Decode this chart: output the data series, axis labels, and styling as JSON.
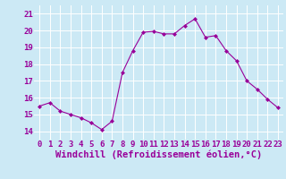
{
  "x": [
    0,
    1,
    2,
    3,
    4,
    5,
    6,
    7,
    8,
    9,
    10,
    11,
    12,
    13,
    14,
    15,
    16,
    17,
    18,
    19,
    20,
    21,
    22,
    23
  ],
  "y": [
    15.5,
    15.7,
    15.2,
    15.0,
    14.8,
    14.5,
    14.1,
    14.6,
    17.5,
    18.8,
    19.9,
    19.95,
    19.8,
    19.8,
    20.3,
    20.7,
    19.6,
    19.7,
    18.8,
    18.2,
    17.0,
    16.5,
    15.9,
    15.4
  ],
  "line_color": "#990099",
  "marker": "D",
  "marker_size": 2.0,
  "bg_color": "#cce9f5",
  "grid_color": "#ffffff",
  "xlabel": "Windchill (Refroidissement éolien,°C)",
  "xlabel_color": "#990099",
  "xlabel_fontsize": 7.5,
  "tick_color": "#990099",
  "tick_fontsize": 6.5,
  "ylim": [
    13.5,
    21.5
  ],
  "yticks": [
    14,
    15,
    16,
    17,
    18,
    19,
    20,
    21
  ],
  "xlim": [
    -0.5,
    23.5
  ],
  "xticks": [
    0,
    1,
    2,
    3,
    4,
    5,
    6,
    7,
    8,
    9,
    10,
    11,
    12,
    13,
    14,
    15,
    16,
    17,
    18,
    19,
    20,
    21,
    22,
    23
  ]
}
